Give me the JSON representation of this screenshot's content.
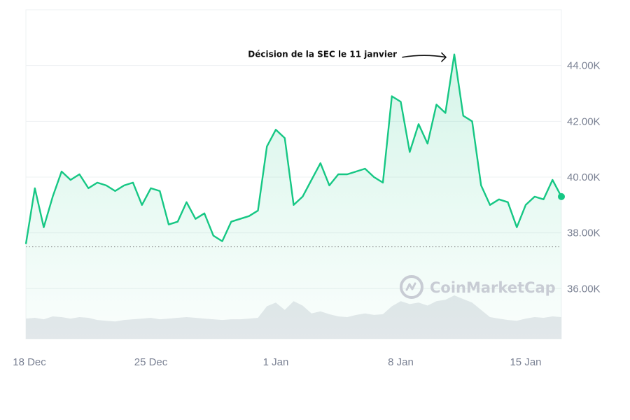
{
  "chart_data": {
    "type": "line",
    "title": "",
    "xlabel": "",
    "ylabel": "",
    "x_ticks": [
      "18 Dec",
      "25 Dec",
      "1 Jan",
      "8 Jan",
      "15 Jan"
    ],
    "y_ticks": [
      "36.00K",
      "38.00K",
      "40.00K",
      "42.00K",
      "44.00K"
    ],
    "ylim": [
      34200,
      46000
    ],
    "grid": true,
    "baseline_value": 37500,
    "annotation": {
      "text": "Décision de la SEC le 11 janvier",
      "x": "11 Jan",
      "y": 44400
    },
    "watermark": "CoinMarketCap",
    "series": [
      {
        "color": "#16c784",
        "x": [
          "2023-12-18",
          "2023-12-18 12:00",
          "2023-12-19",
          "2023-12-19 12:00",
          "2023-12-20",
          "2023-12-20 12:00",
          "2023-12-21",
          "2023-12-21 12:00",
          "2023-12-22",
          "2023-12-22 12:00",
          "2023-12-23",
          "2023-12-23 12:00",
          "2023-12-24",
          "2023-12-24 12:00",
          "2023-12-25",
          "2023-12-25 12:00",
          "2023-12-26",
          "2023-12-26 12:00",
          "2023-12-27",
          "2023-12-27 12:00",
          "2023-12-28",
          "2023-12-28 12:00",
          "2023-12-29",
          "2023-12-29 12:00",
          "2023-12-30",
          "2023-12-30 12:00",
          "2023-12-31",
          "2023-12-31 12:00",
          "2024-01-01",
          "2024-01-01 12:00",
          "2024-01-02",
          "2024-01-02 12:00",
          "2024-01-03",
          "2024-01-03 12:00",
          "2024-01-04",
          "2024-01-04 12:00",
          "2024-01-05",
          "2024-01-05 12:00",
          "2024-01-06",
          "2024-01-06 12:00",
          "2024-01-07",
          "2024-01-07 12:00",
          "2024-01-08",
          "2024-01-08 12:00",
          "2024-01-09",
          "2024-01-09 12:00",
          "2024-01-10",
          "2024-01-10 12:00",
          "2024-01-11",
          "2024-01-11 12:00",
          "2024-01-12",
          "2024-01-12 12:00",
          "2024-01-13",
          "2024-01-13 12:00",
          "2024-01-14",
          "2024-01-14 12:00",
          "2024-01-15",
          "2024-01-15 12:00",
          "2024-01-16",
          "2024-01-16 12:00",
          "2024-01-17"
        ],
        "values": [
          37600,
          39600,
          38200,
          39300,
          40200,
          39900,
          40100,
          39600,
          39800,
          39700,
          39500,
          39700,
          39800,
          39000,
          39600,
          39500,
          38300,
          38400,
          39100,
          38500,
          38700,
          37900,
          37700,
          38400,
          38500,
          38600,
          38800,
          41100,
          41700,
          41400,
          39000,
          39300,
          39900,
          40500,
          39700,
          40100,
          40100,
          40200,
          40300,
          40000,
          39800,
          42900,
          42700,
          40900,
          41900,
          41200,
          42600,
          42300,
          44400,
          42200,
          42000,
          39700,
          39000,
          39200,
          39100,
          38200,
          39000,
          39300,
          39200,
          39900,
          39300
        ]
      }
    ],
    "volume": {
      "color": "#e6e8ec",
      "values": [
        28,
        29,
        27,
        31,
        30,
        28,
        30,
        29,
        26,
        25,
        24,
        26,
        27,
        28,
        29,
        27,
        28,
        29,
        30,
        29,
        28,
        27,
        26,
        27,
        27,
        28,
        29,
        45,
        50,
        40,
        52,
        46,
        35,
        38,
        34,
        31,
        30,
        33,
        35,
        33,
        34,
        45,
        52,
        48,
        50,
        46,
        52,
        54,
        60,
        55,
        50,
        40,
        30,
        28,
        26,
        25,
        28,
        30,
        29,
        31,
        30
      ]
    }
  }
}
